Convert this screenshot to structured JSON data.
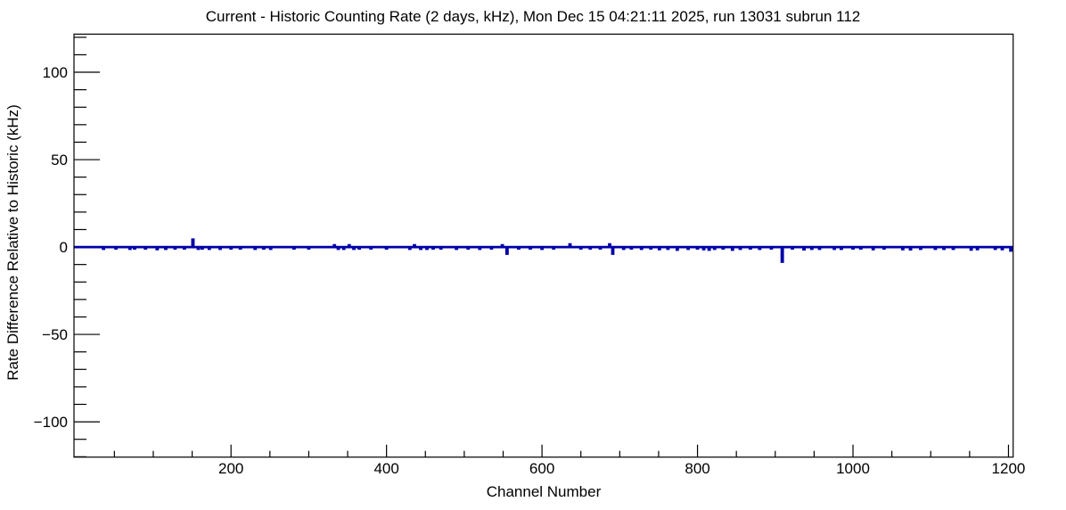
{
  "chart_data": {
    "type": "line",
    "title": "Current - Historic Counting Rate (2 days, kHz), Mon Dec 15 04:21:11 2025, run 13031 subrun 112",
    "xlabel": "Channel Number",
    "ylabel": "Rate Difference Relative to Historic (kHz)",
    "xlim": [
      -2,
      1206
    ],
    "ylim": [
      -120.2,
      121.8
    ],
    "x_major_ticks": [
      200,
      400,
      600,
      800,
      1000,
      1200
    ],
    "x_minor_step": 50,
    "y_major_ticks": [
      100,
      50,
      0,
      -50,
      -100
    ],
    "y_minor_step": 10,
    "grid": false,
    "legend": false,
    "baseline": 0,
    "line_color": "#0000a8",
    "frame_color": "#000000",
    "background_color": "#ffffff",
    "spikes": [
      [
        36,
        -1
      ],
      [
        52,
        -0.8
      ],
      [
        70,
        -1
      ],
      [
        76,
        -0.8
      ],
      [
        90,
        -0.8
      ],
      [
        105,
        -1.2
      ],
      [
        116,
        -1
      ],
      [
        128,
        -0.8
      ],
      [
        140,
        -0.8
      ],
      [
        151,
        4.2
      ],
      [
        158,
        -1
      ],
      [
        163,
        -0.8
      ],
      [
        172,
        -1
      ],
      [
        186,
        -1
      ],
      [
        200,
        -0.8
      ],
      [
        212,
        -0.8
      ],
      [
        231,
        -1
      ],
      [
        242,
        -0.8
      ],
      [
        251,
        -1
      ],
      [
        281,
        -0.8
      ],
      [
        300,
        -0.8
      ],
      [
        333,
        1
      ],
      [
        338,
        -1
      ],
      [
        345,
        -1
      ],
      [
        352,
        1
      ],
      [
        358,
        -1
      ],
      [
        365,
        -0.8
      ],
      [
        380,
        -0.8
      ],
      [
        400,
        -0.8
      ],
      [
        430,
        -1
      ],
      [
        436,
        1
      ],
      [
        444,
        -1
      ],
      [
        452,
        -1
      ],
      [
        460,
        -0.8
      ],
      [
        470,
        -0.8
      ],
      [
        490,
        -1
      ],
      [
        505,
        -0.8
      ],
      [
        520,
        -1
      ],
      [
        535,
        -0.8
      ],
      [
        549,
        1
      ],
      [
        555,
        -3.8
      ],
      [
        570,
        -0.8
      ],
      [
        585,
        -0.8
      ],
      [
        600,
        -1
      ],
      [
        615,
        -0.8
      ],
      [
        636,
        1.5
      ],
      [
        650,
        -0.8
      ],
      [
        662,
        -0.8
      ],
      [
        675,
        -0.8
      ],
      [
        687,
        1.5
      ],
      [
        691,
        -3.8
      ],
      [
        705,
        -1
      ],
      [
        715,
        -0.8
      ],
      [
        728,
        -1
      ],
      [
        740,
        -0.8
      ],
      [
        751,
        -1.2
      ],
      [
        762,
        -1
      ],
      [
        774,
        -1.5
      ],
      [
        788,
        -1
      ],
      [
        800,
        -0.8
      ],
      [
        808,
        -1.2
      ],
      [
        815,
        -1.5
      ],
      [
        822,
        -1
      ],
      [
        833,
        -0.8
      ],
      [
        845,
        -1.5
      ],
      [
        855,
        -1
      ],
      [
        868,
        -0.8
      ],
      [
        880,
        -1
      ],
      [
        895,
        -0.8
      ],
      [
        909,
        -8.4
      ],
      [
        922,
        -0.8
      ],
      [
        937,
        -1.3
      ],
      [
        947,
        -1
      ],
      [
        957,
        -1
      ],
      [
        976,
        -1
      ],
      [
        985,
        -1
      ],
      [
        1000,
        -0.8
      ],
      [
        1010,
        -0.8
      ],
      [
        1026,
        -1.2
      ],
      [
        1040,
        -0.8
      ],
      [
        1064,
        -1.2
      ],
      [
        1074,
        -1.3
      ],
      [
        1087,
        -1
      ],
      [
        1106,
        -1
      ],
      [
        1117,
        -1
      ],
      [
        1129,
        -1
      ],
      [
        1152,
        -1.4
      ],
      [
        1160,
        -1.2
      ],
      [
        1183,
        -1
      ],
      [
        1192,
        -1.2
      ],
      [
        1203,
        -2
      ]
    ]
  }
}
